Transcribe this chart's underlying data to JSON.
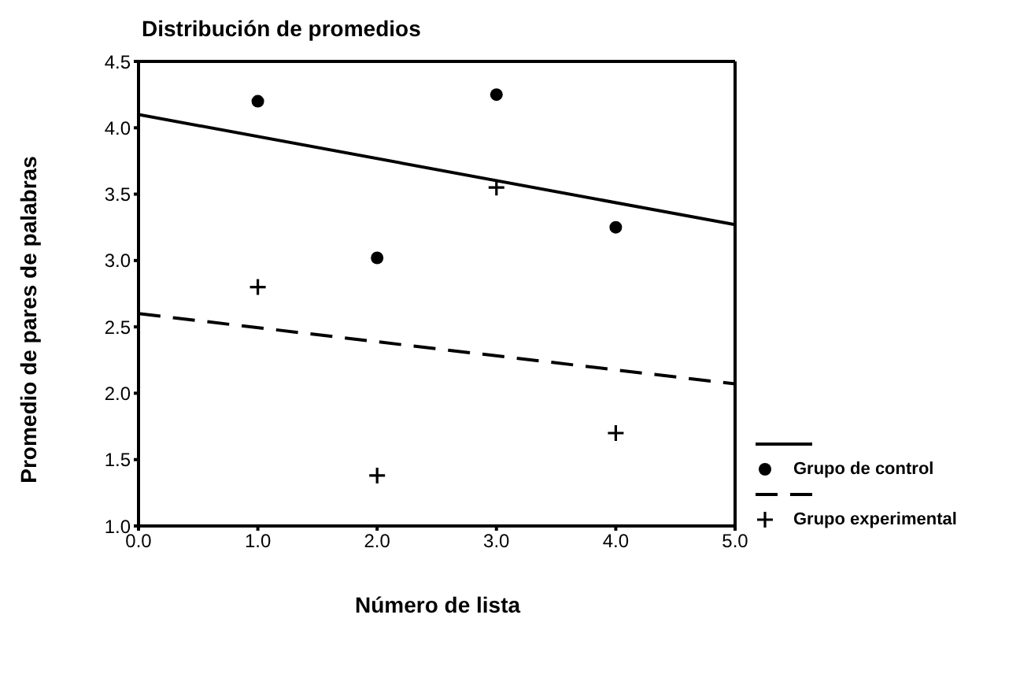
{
  "chart_data": {
    "type": "scatter",
    "title": "Distribución de promedios",
    "xlabel": "Número de lista",
    "ylabel": "Promedio de pares de palabras",
    "xlim": [
      0,
      5
    ],
    "ylim": [
      1,
      4.5
    ],
    "xticks": [
      {
        "value": 0,
        "label": "0.0"
      },
      {
        "value": 1,
        "label": "1.0"
      },
      {
        "value": 2,
        "label": "2.0"
      },
      {
        "value": 3,
        "label": "3.0"
      },
      {
        "value": 4,
        "label": "4.0"
      },
      {
        "value": 5,
        "label": "5.0"
      }
    ],
    "yticks": [
      {
        "value": 1,
        "label": "1.0"
      },
      {
        "value": 1.5,
        "label": "1.5"
      },
      {
        "value": 2,
        "label": "2.0"
      },
      {
        "value": 2.5,
        "label": "2.5"
      },
      {
        "value": 3,
        "label": "3.0"
      },
      {
        "value": 3.5,
        "label": "3.5"
      },
      {
        "value": 4,
        "label": "4.0"
      },
      {
        "value": 4.5,
        "label": "4.5"
      }
    ],
    "grid": false,
    "legend": "right",
    "series": [
      {
        "type": "line",
        "color": "#000000",
        "x": [
          0,
          5
        ],
        "values": [
          4.1,
          3.27
        ],
        "line_style": "solid",
        "marker": "none"
      },
      {
        "name": "Grupo de control",
        "color": "#000000",
        "x": [
          1,
          2,
          3,
          4
        ],
        "values": [
          4.2,
          3.02,
          4.25,
          3.25
        ],
        "marker": "circle"
      },
      {
        "type": "line",
        "color": "#000000",
        "x": [
          0,
          5
        ],
        "values": [
          2.6,
          2.07
        ],
        "line_style": "dashed",
        "marker": "none"
      },
      {
        "name": "Grupo experimental",
        "color": "#000000",
        "x": [
          1,
          2,
          3,
          4
        ],
        "values": [
          2.8,
          1.38,
          3.55,
          1.7
        ],
        "marker": "cross"
      }
    ]
  }
}
